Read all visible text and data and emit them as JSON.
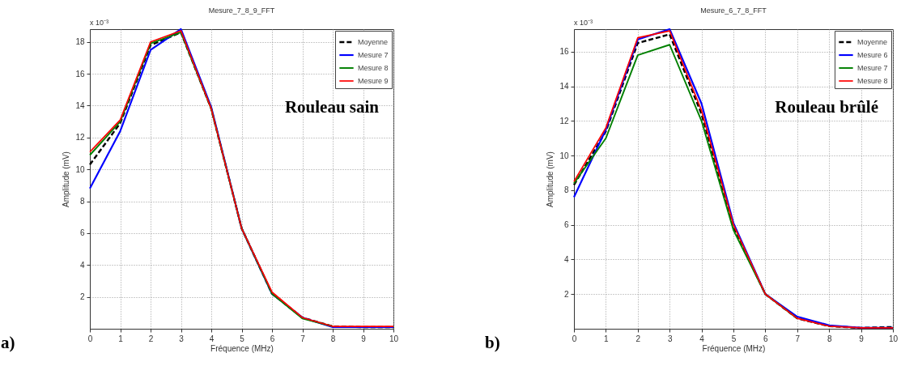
{
  "chart_data": [
    {
      "type": "line",
      "title": "Mesure_7_8_9_FFT",
      "xlabel": "Fréquence (MHz)",
      "ylabel": "Amplitude (mV)",
      "annotations": [
        "x 10⁻³",
        "Rouleau sain",
        "a)"
      ],
      "x": [
        0,
        1,
        2,
        3,
        4,
        5,
        6,
        7,
        8,
        9,
        10
      ],
      "xlim": [
        0,
        10
      ],
      "xticks": [
        0,
        1,
        2,
        3,
        4,
        5,
        6,
        7,
        8,
        9,
        10
      ],
      "ylim": [
        0,
        18.8
      ],
      "yticks": [
        2,
        4,
        6,
        8,
        10,
        12,
        14,
        16,
        18
      ],
      "grid": true,
      "legend": "top right",
      "series": [
        {
          "name": "Moyenne",
          "color": "#000000",
          "line_style": "dashed",
          "values": [
            10.3,
            12.9,
            17.8,
            18.6,
            13.8,
            6.3,
            2.2,
            0.7,
            0.15,
            0.1,
            0.1
          ]
        },
        {
          "name": "Mesure 7",
          "color": "#0000ff",
          "line_style": "solid",
          "values": [
            8.8,
            12.4,
            17.5,
            18.8,
            13.9,
            6.3,
            2.2,
            0.7,
            0.1,
            0.1,
            0.1
          ]
        },
        {
          "name": "Mesure 8",
          "color": "#008000",
          "line_style": "solid",
          "values": [
            10.9,
            13.0,
            17.9,
            18.6,
            13.8,
            6.3,
            2.2,
            0.65,
            0.15,
            null,
            null
          ]
        },
        {
          "name": "Mesure 9",
          "color": "#ff0000",
          "line_style": "solid",
          "values": [
            11.1,
            13.1,
            18.0,
            18.7,
            13.8,
            6.3,
            2.3,
            0.7,
            0.15,
            0.15,
            0.15
          ]
        }
      ]
    },
    {
      "type": "line",
      "title": "Mesure_6_7_8_FFT",
      "xlabel": "Fréquence (MHz)",
      "ylabel": "Amplitude (mV)",
      "annotations": [
        "x 10⁻³",
        "Rouleau brûlé",
        "b)"
      ],
      "x": [
        0,
        1,
        2,
        3,
        4,
        5,
        6,
        7,
        8,
        9,
        10
      ],
      "xlim": [
        0,
        10
      ],
      "xticks": [
        0,
        1,
        2,
        3,
        4,
        5,
        6,
        7,
        8,
        9,
        10
      ],
      "ylim": [
        0,
        17.3
      ],
      "yticks": [
        2,
        4,
        6,
        8,
        10,
        12,
        14,
        16
      ],
      "grid": true,
      "legend": "top right",
      "series": [
        {
          "name": "Moyenne",
          "color": "#000000",
          "line_style": "dashed",
          "values": [
            8.3,
            11.4,
            16.5,
            17.0,
            12.4,
            5.9,
            2.0,
            0.6,
            0.15,
            0.05,
            0.1
          ]
        },
        {
          "name": "Mesure 6",
          "color": "#0000ff",
          "line_style": "solid",
          "values": [
            7.6,
            11.5,
            16.7,
            17.3,
            13.0,
            6.1,
            2.0,
            0.7,
            0.2,
            0.05,
            0.05
          ]
        },
        {
          "name": "Mesure 7",
          "color": "#008000",
          "line_style": "solid",
          "values": [
            8.4,
            11.0,
            15.8,
            16.4,
            12.0,
            5.7,
            2.0,
            0.6,
            null,
            null,
            null
          ]
        },
        {
          "name": "Mesure 8",
          "color": "#ff0000",
          "line_style": "solid",
          "values": [
            8.5,
            11.6,
            16.8,
            17.2,
            12.6,
            6.0,
            2.0,
            0.6,
            0.15,
            0.05,
            0.05
          ]
        }
      ]
    }
  ]
}
